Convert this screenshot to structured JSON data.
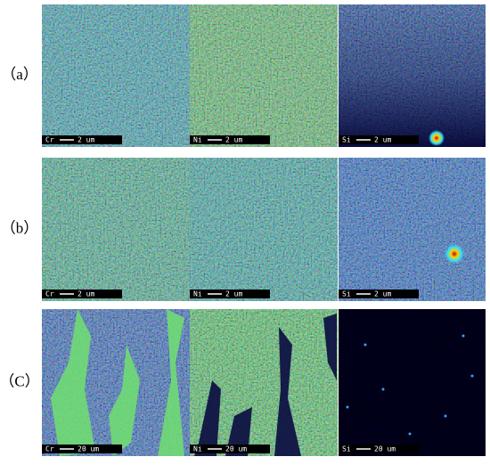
{
  "figure": {
    "rows": [
      {
        "label": "（a）",
        "panels": [
          {
            "element": "Cr",
            "scale": "2 um"
          },
          {
            "element": "Ni",
            "scale": "2 um"
          },
          {
            "element": "Si",
            "scale": "2 um"
          }
        ]
      },
      {
        "label": "（b）",
        "panels": [
          {
            "element": "Cr",
            "scale": "2 um"
          },
          {
            "element": "Ni",
            "scale": "2 um"
          },
          {
            "element": "Si",
            "scale": "2 um"
          }
        ]
      },
      {
        "label": "（C）",
        "panels": [
          {
            "element": "Cr",
            "scale": "20 um"
          },
          {
            "element": "Ni",
            "scale": "20 um"
          },
          {
            "element": "Si",
            "scale": "20 um"
          }
        ]
      }
    ]
  }
}
